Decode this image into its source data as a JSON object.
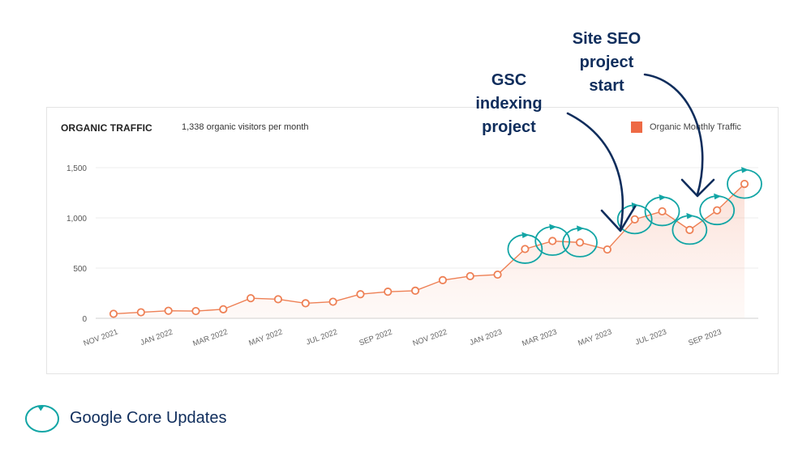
{
  "card": {
    "title": "ORGANIC TRAFFIC",
    "subtitle": "1,338 organic visitors per month"
  },
  "legend": {
    "label": "Organic Monthly Traffic",
    "swatch_color": "#ee6a45"
  },
  "callouts": {
    "gsc": [
      "GSC",
      "indexing",
      "project"
    ],
    "seo": [
      "Site SEO",
      "project",
      "start"
    ]
  },
  "bottom_legend": {
    "label": "Google Core Updates",
    "icon": "circle-arrow-icon",
    "color": "#12a5a5"
  },
  "chart_data": {
    "type": "area",
    "title": "ORGANIC TRAFFIC",
    "x": [
      "NOV 2021",
      "DEC 2021",
      "JAN 2022",
      "FEB 2022",
      "MAR 2022",
      "APR 2022",
      "MAY 2022",
      "JUN 2022",
      "JUL 2022",
      "AUG 2022",
      "SEP 2022",
      "OCT 2022",
      "NOV 2022",
      "DEC 2022",
      "JAN 2023",
      "FEB 2023",
      "MAR 2023",
      "APR 2023",
      "MAY 2023",
      "JUN 2023",
      "JUL 2023",
      "AUG 2023",
      "SEP 2023",
      "OCT 2023"
    ],
    "x_tick_labels": [
      "NOV 2021",
      "JAN 2022",
      "MAR 2022",
      "MAY 2022",
      "JUL 2022",
      "SEP 2022",
      "NOV 2022",
      "JAN 2023",
      "MAR 2023",
      "MAY 2023",
      "JUL 2023",
      "SEP 2023"
    ],
    "series": [
      {
        "name": "Organic Monthly Traffic",
        "values": [
          45,
          60,
          75,
          72,
          90,
          200,
          190,
          150,
          165,
          240,
          265,
          275,
          380,
          420,
          435,
          690,
          770,
          755,
          685,
          985,
          1065,
          880,
          1075,
          1338
        ]
      }
    ],
    "yticks": [
      0,
      500,
      1000,
      1500
    ],
    "ytick_labels": [
      "0",
      "500",
      "1,000",
      "1,500"
    ],
    "ylim": [
      0,
      1500
    ],
    "grid": true,
    "legend_position": "top-right",
    "line_color": "#ee8055",
    "core_update_months": [
      "FEB 2023",
      "MAR 2023",
      "APR 2023",
      "JUN 2023",
      "JUL 2023",
      "AUG 2023",
      "SEP 2023",
      "OCT 2023"
    ]
  }
}
